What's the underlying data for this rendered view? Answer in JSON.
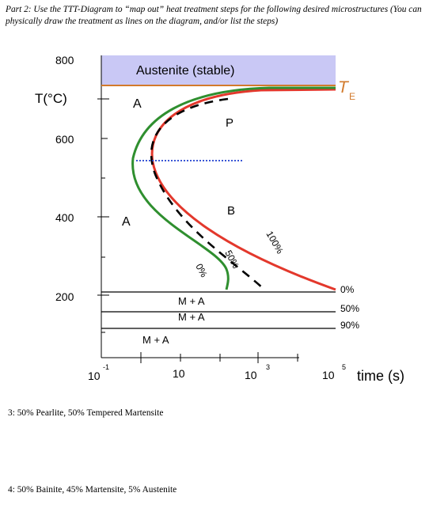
{
  "header": {
    "text": "Part 2: Use the TTT-Diagram to “map out” heat treatment steps for the following desired microstructures (You can physically draw the treatment as lines on the diagram, and/or list the steps)"
  },
  "diagram": {
    "y_axis_label": "T(°C)",
    "y_ticks": [
      "800",
      "600",
      "400",
      "200"
    ],
    "x_axis_label": "time (s)",
    "x_ticks": [
      {
        "base": "10",
        "exp": "-1"
      },
      {
        "base": "10",
        "exp": ""
      },
      {
        "base": "10",
        "exp": "3"
      },
      {
        "base": "10",
        "exp": "5"
      }
    ],
    "austenite_stable": "Austenite (stable)",
    "te_symbol": "T",
    "te_subscript": "E",
    "label_A_top": "A",
    "label_A_left": "A",
    "label_P": "P",
    "label_B": "B",
    "label_0pct_curve": "0%",
    "label_50pct_curve": "50%",
    "label_100pct_curve": "100%",
    "label_MA_1": "M + A",
    "label_MA_2": "M + A",
    "label_MA_3": "M + A",
    "martensite_pct_0": "0%",
    "martensite_pct_50": "50%",
    "martensite_pct_90": "90%",
    "colors": {
      "austenite_fill": "#c9c8f5",
      "te_line": "#d27a2c",
      "start_curve": "#2f8f2f",
      "finish_curve": "#e3382c",
      "midpoint_curve": "#000000",
      "nose_line": "#1f3fd0"
    }
  },
  "questions": {
    "q3": "3: 50% Pearlite, 50% Tempered Martensite",
    "q4": "4: 50% Bainite, 45% Martensite, 5% Austenite"
  }
}
